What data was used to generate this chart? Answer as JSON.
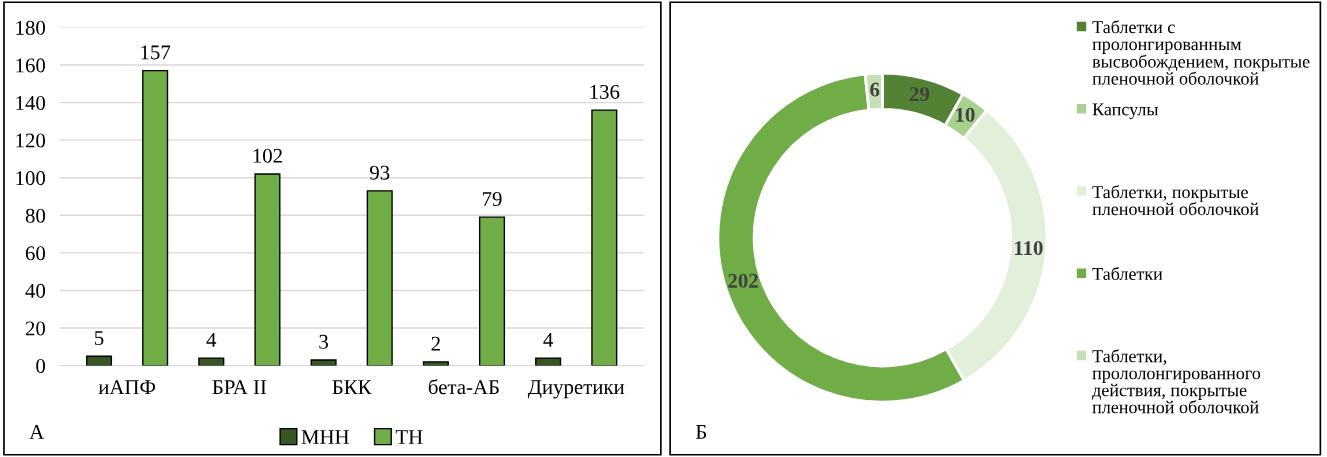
{
  "chart_data": [
    {
      "type": "bar",
      "categories": [
        "иАПФ",
        "БРА II",
        "БКК",
        "бета-АБ",
        "Диуретики"
      ],
      "series": [
        {
          "name": "МНН",
          "color": "#375623",
          "values": [
            5,
            4,
            3,
            2,
            4
          ]
        },
        {
          "name": "ТН",
          "color": "#70ad47",
          "values": [
            157,
            102,
            93,
            79,
            136
          ]
        }
      ],
      "ylim": [
        0,
        180
      ],
      "yticks": [
        0,
        20,
        40,
        60,
        80,
        100,
        120,
        140,
        160,
        180
      ],
      "grid": "y",
      "legend": "bottom",
      "data_labels": true,
      "annotations": [
        "А"
      ]
    },
    {
      "type": "donut",
      "categories": [
        "Таблетки с пролонгированным высвобождением, покрытые пленочной оболочкой",
        "Капсулы",
        "Таблетки, покрытые пленочной оболочкой",
        "Таблетки",
        "Таблетки, прололонгированного действия, покрытые пленочной оболочкой"
      ],
      "values": [
        29,
        10,
        110,
        202,
        6
      ],
      "colors": [
        "#548235",
        "#a9d18e",
        "#e2efda",
        "#70ad47",
        "#c5e0b4"
      ],
      "data_labels": true,
      "legend": "right",
      "annotations": [
        "Б"
      ]
    }
  ]
}
